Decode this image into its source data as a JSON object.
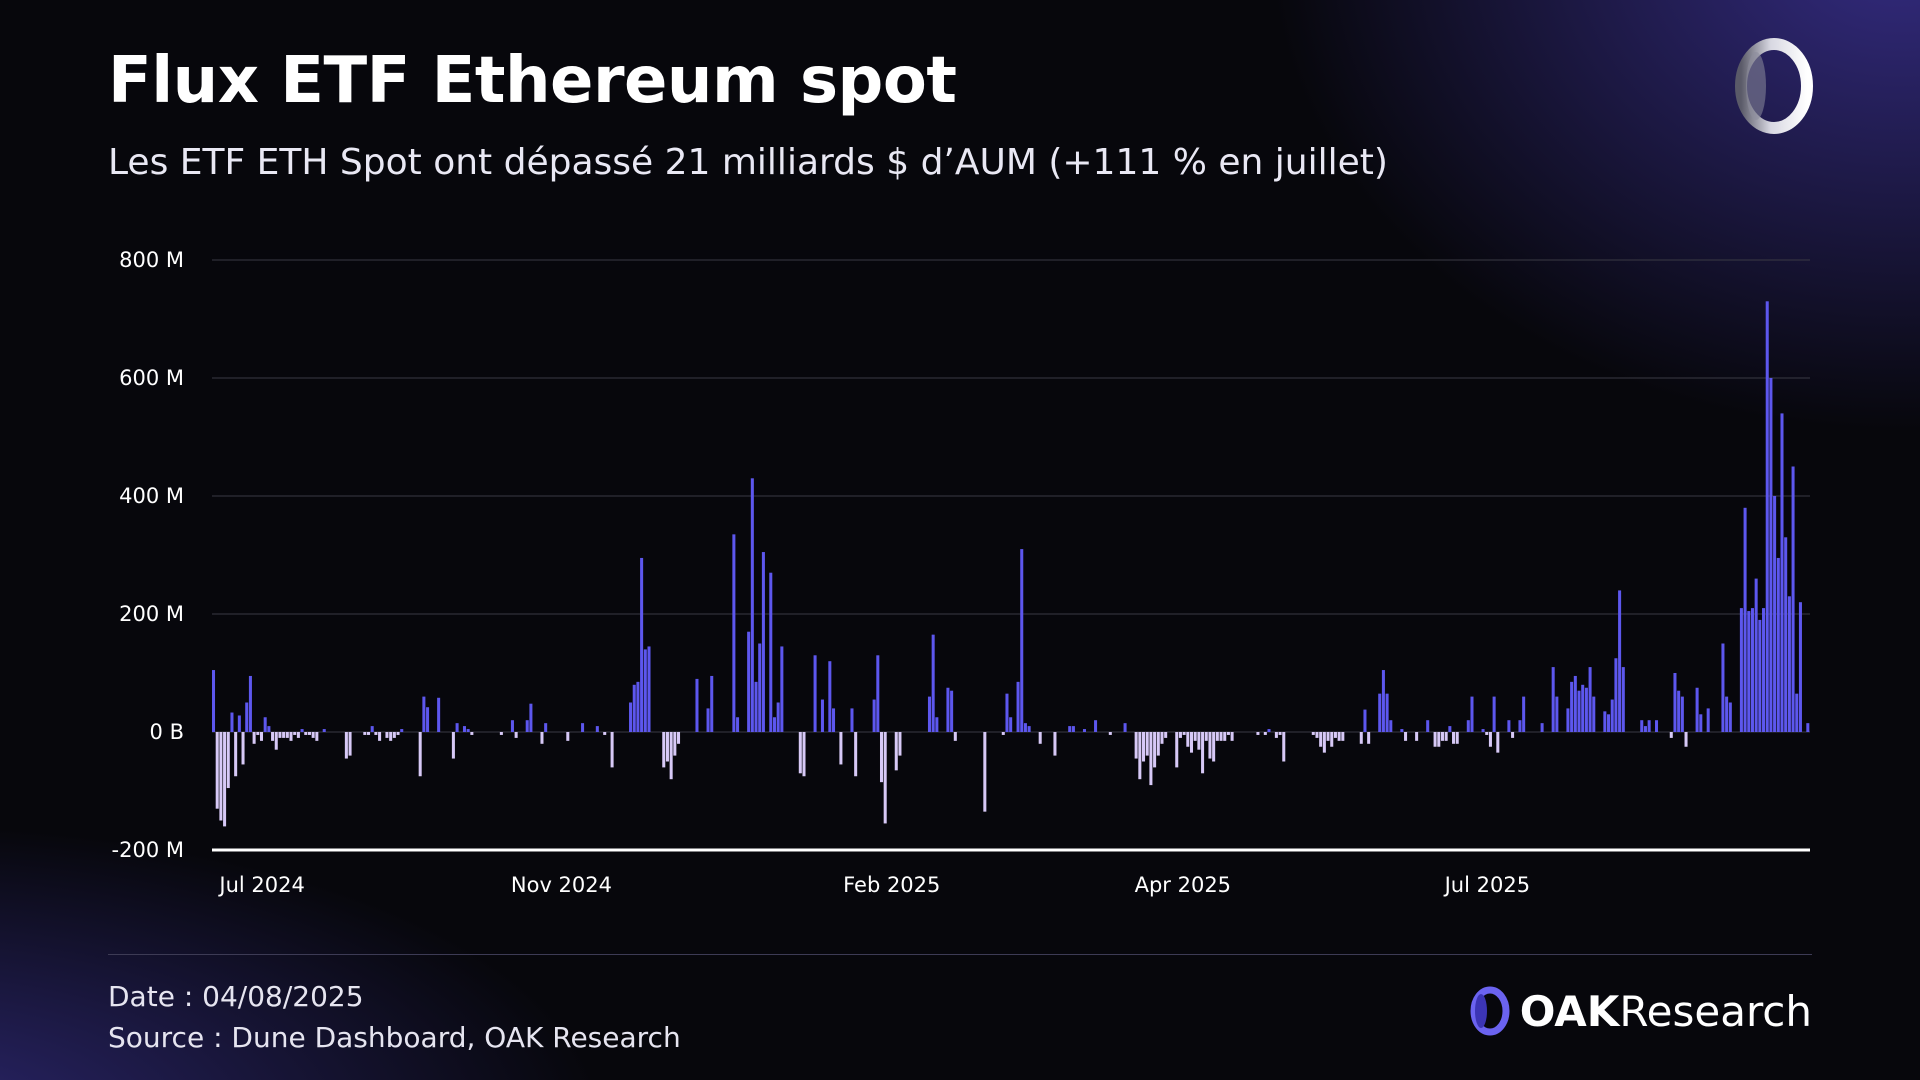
{
  "header": {
    "title": "Flux ETF Ethereum spot",
    "subtitle": "Les ETF ETH Spot ont dépassé 21 milliards $ d’AUM (+111 % en juillet)"
  },
  "footer": {
    "date": "Date : 04/08/2025",
    "source": "Source : Dune Dashboard, OAK Research",
    "brand_bold": "OAK",
    "brand_rest": "Research"
  },
  "colors": {
    "positive": "#5d57ee",
    "negative": "#d7c9f7",
    "gridline": "#3a3a44",
    "baseline": "#ffffff"
  },
  "chart_data": {
    "type": "bar",
    "title": "",
    "xlabel": "",
    "ylabel": "",
    "ylim": [
      -200,
      800
    ],
    "y_unit": "M USD (daily net flow)",
    "y_ticks": [
      {
        "value": 800,
        "label": "800 M"
      },
      {
        "value": 600,
        "label": "600 M"
      },
      {
        "value": 400,
        "label": "400 M"
      },
      {
        "value": 200,
        "label": "200 M"
      },
      {
        "value": 0,
        "label": "0 B"
      },
      {
        "value": -200,
        "label": "-200 M"
      }
    ],
    "x_ticks": [
      {
        "index": 2,
        "label": "Jul 2024"
      },
      {
        "index": 81,
        "label": "Nov 2024"
      },
      {
        "index": 171,
        "label": "Feb 2025"
      },
      {
        "index": 250,
        "label": "Apr 2025"
      },
      {
        "index": 334,
        "label": "Jul 2025"
      }
    ],
    "grid": true,
    "series": [
      {
        "values": [
          105,
          -130,
          -150,
          -160,
          -95,
          33,
          -75,
          28,
          -55,
          50,
          95,
          -20,
          -5,
          -15,
          25,
          10,
          -15,
          -30,
          -10,
          -10,
          -10,
          -15,
          -5,
          -10,
          5,
          -5,
          -5,
          -10,
          -15,
          0,
          5,
          0,
          0,
          0,
          0,
          0,
          -45,
          -40,
          0,
          0,
          0,
          -5,
          -5,
          10,
          -5,
          -15,
          0,
          -10,
          -15,
          -10,
          -5,
          5,
          0,
          0,
          0,
          0,
          -75,
          60,
          42,
          0,
          0,
          58,
          0,
          0,
          0,
          -45,
          15,
          0,
          10,
          5,
          -5,
          0,
          0,
          0,
          0,
          0,
          0,
          0,
          -5,
          0,
          0,
          20,
          -10,
          0,
          0,
          20,
          48,
          0,
          0,
          -20,
          15,
          0,
          0,
          0,
          0,
          0,
          -15,
          0,
          0,
          0,
          15,
          0,
          0,
          0,
          10,
          0,
          -5,
          0,
          -60,
          0,
          0,
          0,
          0,
          50,
          80,
          85,
          295,
          140,
          145,
          0,
          0,
          0,
          -60,
          -50,
          -80,
          -40,
          -20,
          0,
          0,
          0,
          0,
          90,
          0,
          0,
          40,
          95,
          0,
          0,
          0,
          0,
          0,
          335,
          25,
          0,
          0,
          170,
          430,
          85,
          150,
          305,
          0,
          270,
          25,
          50,
          145,
          0,
          0,
          0,
          0,
          -70,
          -75,
          0,
          0,
          130,
          0,
          55,
          0,
          120,
          40,
          0,
          -55,
          0,
          0,
          40,
          -75,
          0,
          0,
          0,
          0,
          55,
          130,
          -85,
          -155,
          0,
          0,
          -65,
          -40,
          0,
          0,
          0,
          0,
          0,
          0,
          0,
          60,
          165,
          25,
          0,
          0,
          75,
          70,
          -15,
          0,
          0,
          0,
          0,
          0,
          0,
          0,
          -135,
          0,
          0,
          0,
          0,
          -5,
          65,
          25,
          0,
          85,
          310,
          15,
          10,
          0,
          0,
          -20,
          0,
          0,
          0,
          -40,
          0,
          0,
          0,
          10,
          10,
          0,
          0,
          5,
          0,
          0,
          20,
          0,
          0,
          0,
          -5,
          0,
          0,
          0,
          15,
          0,
          0,
          -45,
          -80,
          -50,
          -40,
          -90,
          -60,
          -40,
          -20,
          -10,
          0,
          0,
          -60,
          -10,
          -5,
          -25,
          -35,
          -15,
          -30,
          -70,
          -15,
          -45,
          -50,
          -15,
          -15,
          -15,
          -5,
          -15,
          0,
          0,
          0,
          0,
          0,
          0,
          -5,
          0,
          -5,
          5,
          0,
          -10,
          -5,
          -50,
          0,
          0,
          0,
          0,
          0,
          0,
          0,
          -5,
          -10,
          -25,
          -35,
          -15,
          -25,
          -10,
          -15,
          -15,
          0,
          0,
          0,
          0,
          -20,
          38,
          -20,
          0,
          0,
          65,
          105,
          65,
          20,
          0,
          0,
          5,
          -15,
          0,
          0,
          -15,
          0,
          0,
          20,
          0,
          -25,
          -25,
          -15,
          -15,
          10,
          -20,
          -20,
          0,
          0,
          20,
          60,
          0,
          0,
          5,
          -5,
          -25,
          60,
          -35,
          0,
          0,
          20,
          -10,
          0,
          20,
          60,
          0,
          0,
          0,
          0,
          15,
          0,
          0,
          110,
          60,
          0,
          0,
          40,
          85,
          95,
          70,
          80,
          75,
          110,
          60,
          0,
          0,
          35,
          30,
          55,
          125,
          240,
          110,
          0,
          0,
          0,
          0,
          20,
          10,
          20,
          0,
          20,
          0,
          0,
          0,
          -10,
          100,
          70,
          60,
          -25,
          0,
          0,
          75,
          30,
          0,
          40,
          0,
          0,
          0,
          150,
          60,
          50,
          0,
          0,
          210,
          380,
          205,
          210,
          260,
          190,
          210,
          730,
          600,
          400,
          295,
          540,
          330,
          230,
          450,
          65,
          220,
          0,
          15
        ]
      }
    ]
  }
}
